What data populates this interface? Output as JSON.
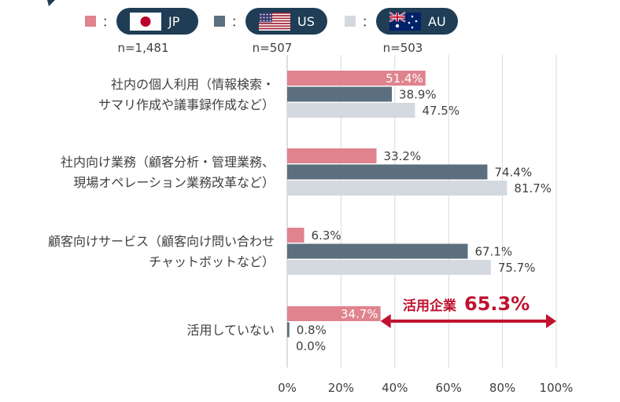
{
  "colors": {
    "JP": "#e0838f",
    "US": "#5b6f7e",
    "AU": "#d3d9de",
    "pill": "#1f3d55",
    "accent": "#c0122f",
    "grid": "#d9d9d9",
    "text": "#404040"
  },
  "legend": {
    "colon": "：",
    "items": [
      {
        "key": "JP",
        "label": "JP",
        "n": "n=1,481",
        "flag": "japan-flag-icon"
      },
      {
        "key": "US",
        "label": "US",
        "n": "n=507",
        "flag": "us-flag-icon"
      },
      {
        "key": "AU",
        "label": "AU",
        "n": "n=503",
        "flag": "australia-flag-icon"
      }
    ]
  },
  "chart_data": {
    "type": "bar",
    "orientation": "horizontal",
    "categories": [
      [
        "社内の個人利用（情報検索・",
        "サマリ作成や議事録作成など）"
      ],
      [
        "社内向け業務（顧客分析・管理業務、",
        "現場オペレーション業務改革など）"
      ],
      [
        "顧客向けサービス（顧客向け問い合わせ",
        "チャットボットなど）"
      ],
      [
        "活用していない"
      ]
    ],
    "series": [
      {
        "name": "JP",
        "values": [
          51.4,
          33.2,
          6.3,
          34.7
        ]
      },
      {
        "name": "US",
        "values": [
          38.9,
          74.4,
          67.1,
          0.8
        ]
      },
      {
        "name": "AU",
        "values": [
          47.5,
          81.7,
          75.7,
          0.0
        ]
      }
    ],
    "xlim": [
      0,
      100
    ],
    "xticks": [
      0,
      20,
      40,
      60,
      80,
      100
    ],
    "tick_suffix": "%",
    "grid": true,
    "annotation": {
      "label": "活用企業",
      "value": "65.3%",
      "from": 34.7,
      "to": 100
    }
  }
}
